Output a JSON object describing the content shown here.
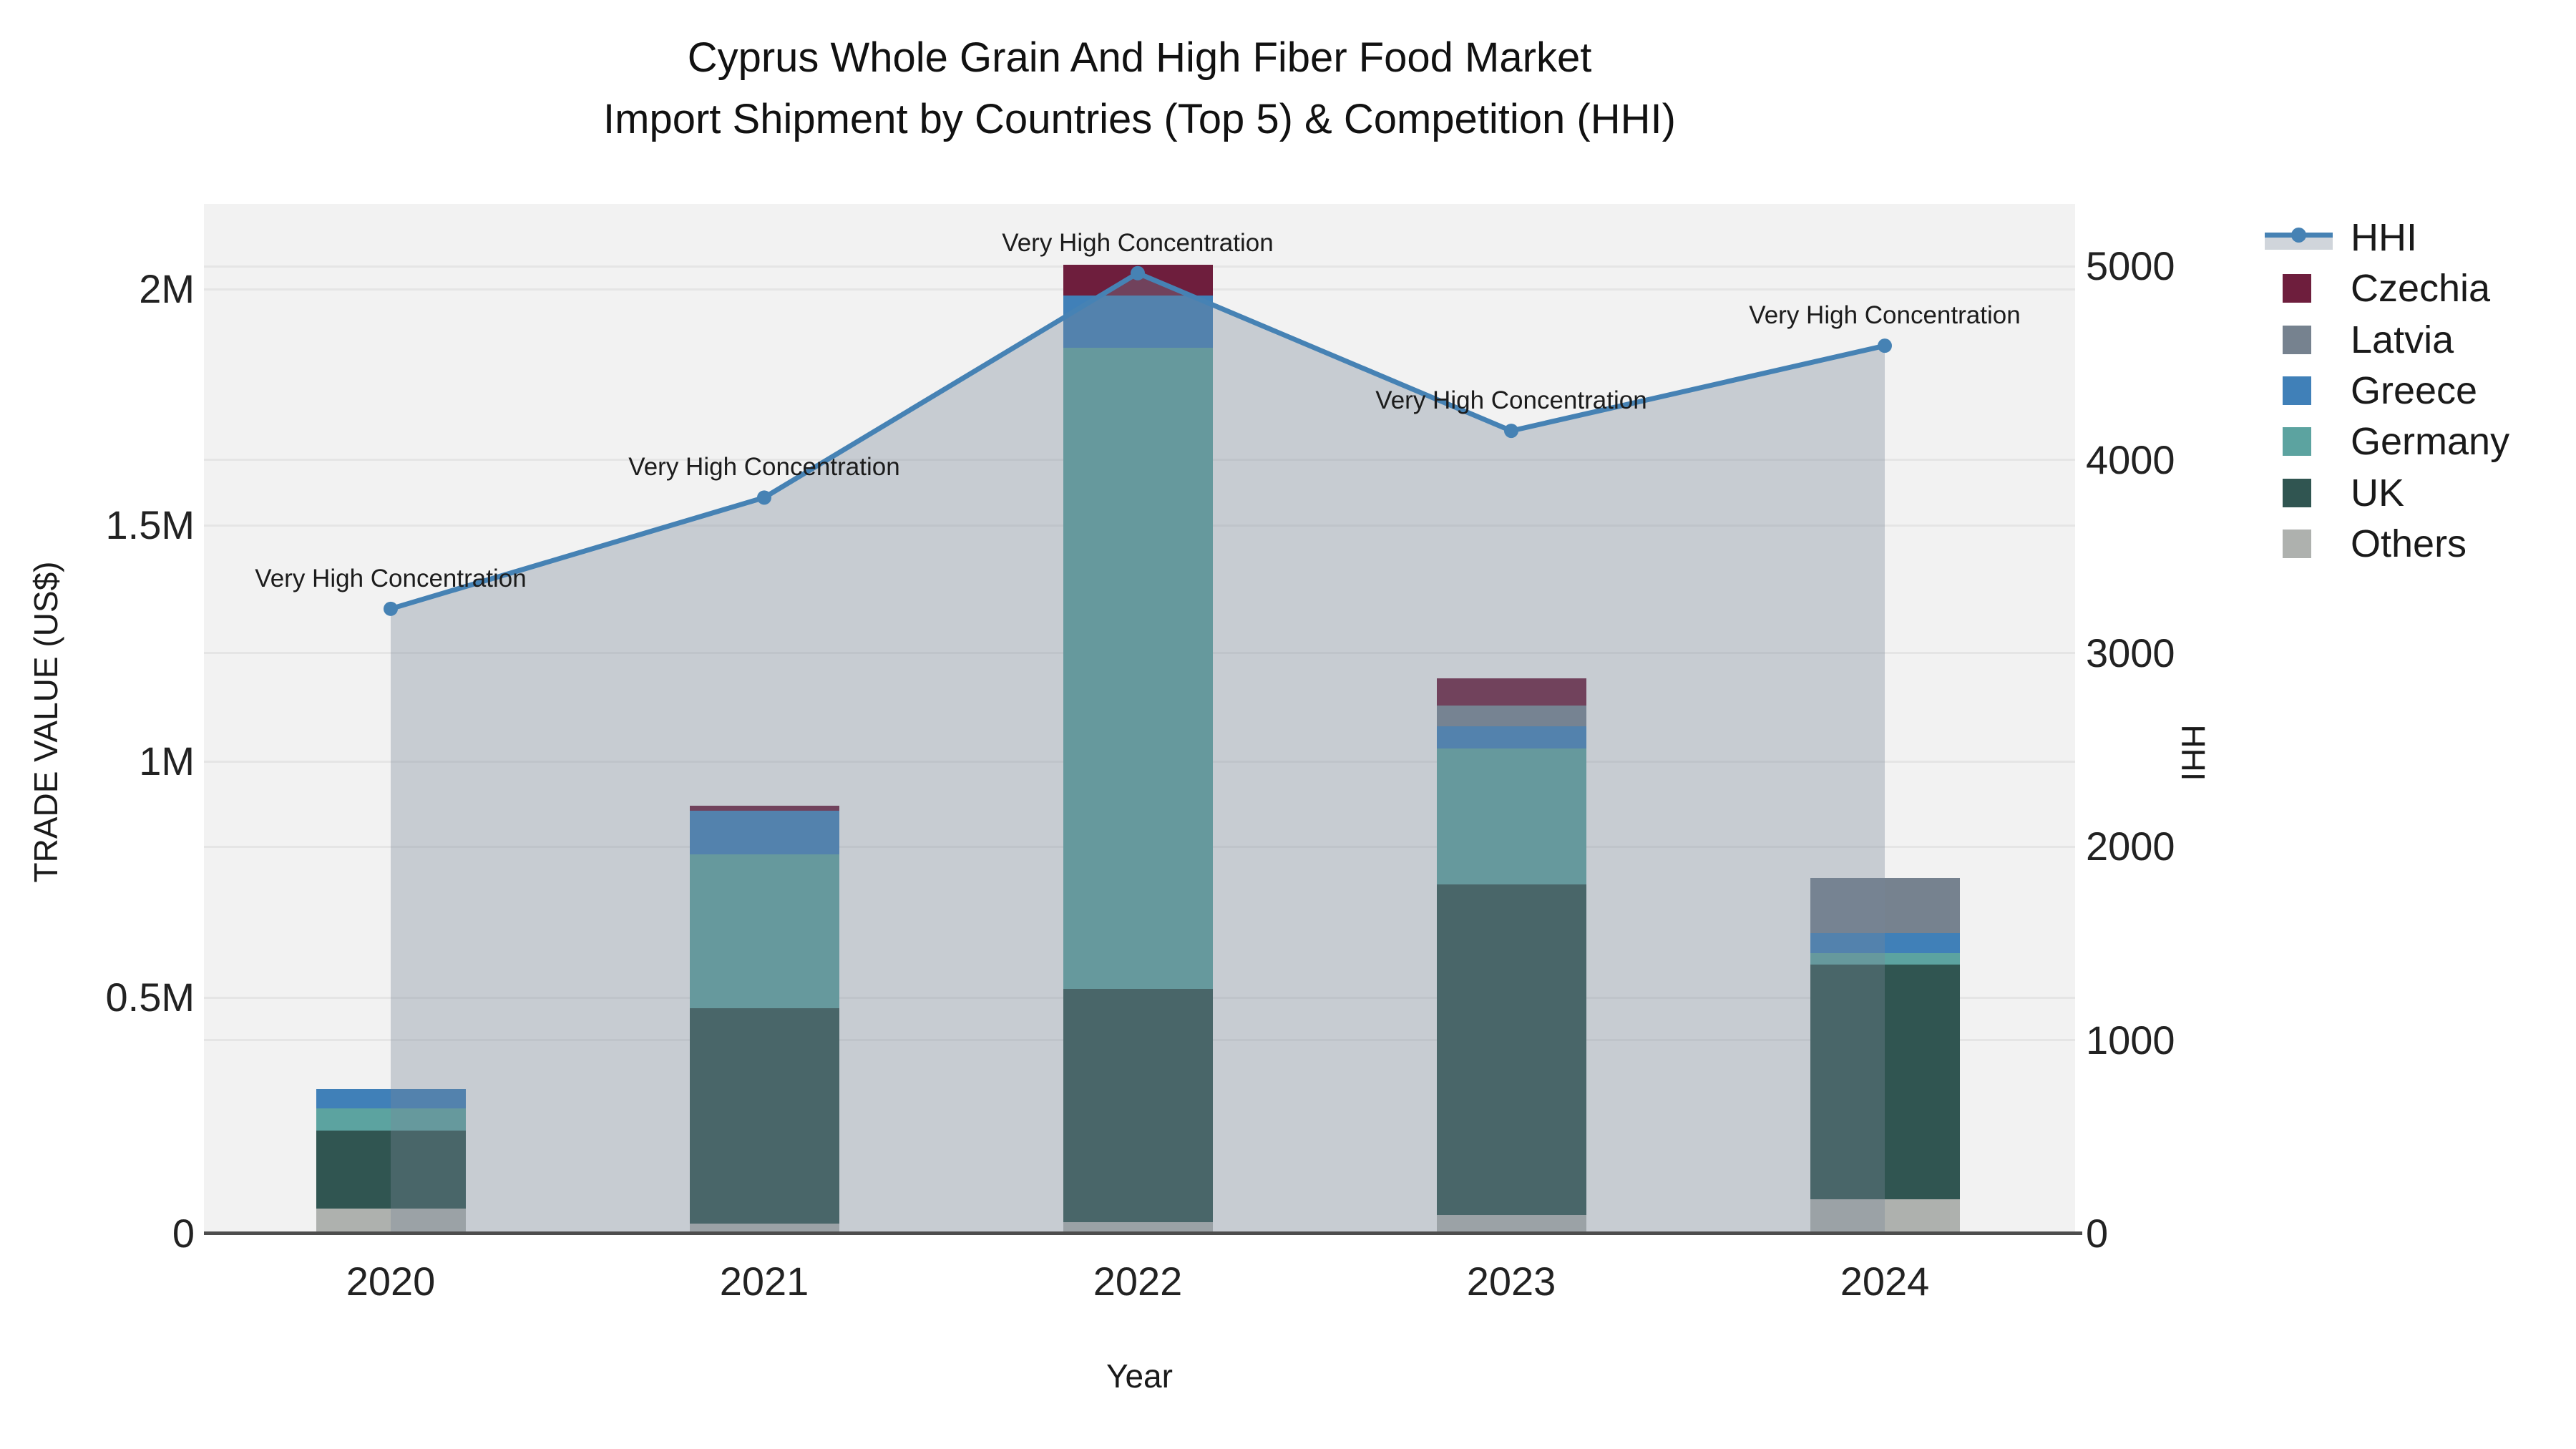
{
  "title": {
    "line1": "Cyprus Whole Grain And High Fiber Food Market",
    "line2": "Import Shipment by Countries (Top 5) & Competition (HHI)"
  },
  "axes": {
    "x": {
      "title": "Year",
      "categories": [
        "2020",
        "2021",
        "2022",
        "2023",
        "2024"
      ]
    },
    "y_left": {
      "title": "TRADE VALUE (US$)",
      "ticks": [
        {
          "label": "0",
          "value": 0
        },
        {
          "label": "0.5M",
          "value": 500000
        },
        {
          "label": "1M",
          "value": 1000000
        },
        {
          "label": "1.5M",
          "value": 1500000
        },
        {
          "label": "2M",
          "value": 2000000
        }
      ]
    },
    "y_right": {
      "title": "HHI",
      "ticks": [
        {
          "label": "0",
          "value": 0
        },
        {
          "label": "1000",
          "value": 1000
        },
        {
          "label": "2000",
          "value": 2000
        },
        {
          "label": "3000",
          "value": 3000
        },
        {
          "label": "4000",
          "value": 4000
        },
        {
          "label": "5000",
          "value": 5000
        }
      ]
    }
  },
  "chart_data": {
    "type": "stacked-bar-with-line",
    "categories": [
      "2020",
      "2021",
      "2022",
      "2023",
      "2024"
    ],
    "xlabel": "Year",
    "ylabel_left": "TRADE VALUE (US$)",
    "ylabel_right": "HHI",
    "ylim_left": [
      0,
      2181000
    ],
    "ylim_right": [
      0,
      5323
    ],
    "grid": true,
    "legend_position": "right",
    "bar_series_bottom_to_top": [
      {
        "name": "Others",
        "color": "#aeb1ae",
        "values": [
          53000,
          21000,
          24000,
          39000,
          72000
        ]
      },
      {
        "name": "UK",
        "color": "#305551",
        "values": [
          165000,
          456000,
          495000,
          700000,
          498000
        ]
      },
      {
        "name": "Germany",
        "color": "#5ca3a0",
        "values": [
          47000,
          326000,
          1357000,
          288000,
          24000
        ]
      },
      {
        "name": "Greece",
        "color": "#4080b8",
        "values": [
          41000,
          93000,
          111000,
          48000,
          43000
        ]
      },
      {
        "name": "Latvia",
        "color": "#76828f",
        "values": [
          0,
          0,
          0,
          44000,
          117000
        ]
      },
      {
        "name": "Czechia",
        "color": "#6e1e3d",
        "values": [
          0,
          10000,
          65000,
          57000,
          0
        ]
      }
    ],
    "line_series": {
      "name": "HHI",
      "color": "#4682b4",
      "area_fill": "rgba(119,136,153,0.35)",
      "values": [
        3230,
        3805,
        4965,
        4150,
        4590
      ]
    },
    "annotations": [
      {
        "category": "2020",
        "text": "Very High Concentration"
      },
      {
        "category": "2021",
        "text": "Very High Concentration"
      },
      {
        "category": "2022",
        "text": "Very High Concentration"
      },
      {
        "category": "2023",
        "text": "Very High Concentration"
      },
      {
        "category": "2024",
        "text": "Very High Concentration"
      }
    ]
  },
  "legend": {
    "items": [
      {
        "label": "HHI",
        "type": "line",
        "color": "#4682b4"
      },
      {
        "label": "Czechia",
        "type": "box",
        "color": "#6e1e3d"
      },
      {
        "label": "Latvia",
        "type": "box",
        "color": "#76828f"
      },
      {
        "label": "Greece",
        "type": "box",
        "color": "#4080b8"
      },
      {
        "label": "Germany",
        "type": "box",
        "color": "#5ca3a0"
      },
      {
        "label": "UK",
        "type": "box",
        "color": "#305551"
      },
      {
        "label": "Others",
        "type": "box",
        "color": "#aeb1ae"
      }
    ]
  }
}
